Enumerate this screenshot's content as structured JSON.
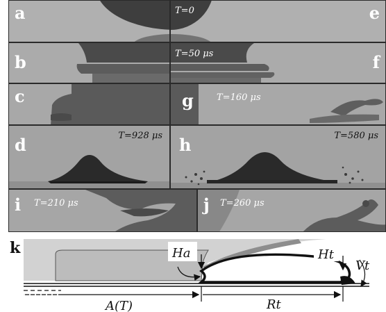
{
  "panels": {
    "a": {
      "letter": "a"
    },
    "e": {
      "letter": "e",
      "time": "T=0"
    },
    "b": {
      "letter": "b"
    },
    "f": {
      "letter": "f",
      "time": "T=50 μs"
    },
    "c": {
      "letter": "c"
    },
    "g": {
      "letter": "g",
      "time": "T=160 μs"
    },
    "d": {
      "letter": "d",
      "time": "T=928 μs"
    },
    "h": {
      "letter": "h",
      "time": "T=580 μs"
    },
    "i": {
      "letter": "i",
      "time": "T=210 μs"
    },
    "j": {
      "letter": "j",
      "time": "T=260 μs"
    }
  },
  "diagram": {
    "letter": "k",
    "labels": {
      "Ha": "Ha",
      "Ht": "Ht",
      "Vt": "Vt",
      "AT": "A(T)",
      "Rt": "Rt"
    }
  },
  "colors": {
    "background_gray": "#a9a9a9",
    "film_light": "#d4d4d4",
    "film_mid": "#bdbdbd",
    "drop_dark": "#333333"
  }
}
